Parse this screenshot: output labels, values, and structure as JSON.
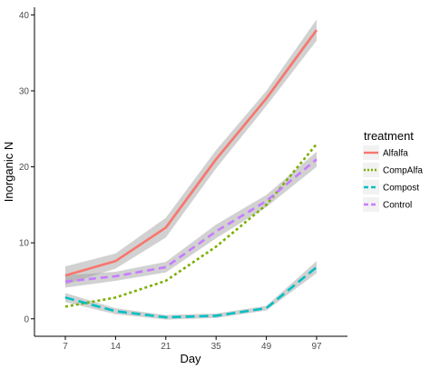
{
  "chart_data": {
    "type": "line",
    "title": "",
    "xlabel": "Day",
    "ylabel": "Inorganic N",
    "categories": [
      "7",
      "14",
      "21",
      "35",
      "49",
      "97"
    ],
    "ylim": [
      -2.3,
      41
    ],
    "yticks": [
      0,
      10,
      20,
      30,
      40
    ],
    "grid": false,
    "legend": {
      "title": "treatment",
      "position": "right"
    },
    "series": [
      {
        "name": "Alfalfa",
        "color": "#F8766D",
        "dash": "solid",
        "values": [
          5.7,
          7.6,
          12.0,
          21.0,
          29.0,
          38.0
        ],
        "band": [
          1.2,
          1.0,
          1.3,
          1.2,
          1.0,
          1.4
        ]
      },
      {
        "name": "CompAlfa",
        "color": "#7CAE00",
        "dash": "dotted",
        "values": [
          1.6,
          2.8,
          5.0,
          9.5,
          15.0,
          23.0
        ],
        "band": [
          0.0,
          0.0,
          0.0,
          0.0,
          0.0,
          0.0
        ]
      },
      {
        "name": "Compost",
        "color": "#00BFC4",
        "dash": "longdash",
        "values": [
          2.8,
          1.0,
          0.2,
          0.4,
          1.4,
          6.8
        ],
        "band": [
          0.6,
          0.4,
          0.3,
          0.3,
          0.3,
          0.8
        ]
      },
      {
        "name": "Control",
        "color": "#C77CFF",
        "dash": "dashed",
        "values": [
          4.9,
          5.6,
          6.8,
          11.5,
          15.5,
          21.0
        ],
        "band": [
          0.8,
          0.6,
          0.7,
          0.9,
          0.8,
          1.0
        ]
      }
    ]
  }
}
